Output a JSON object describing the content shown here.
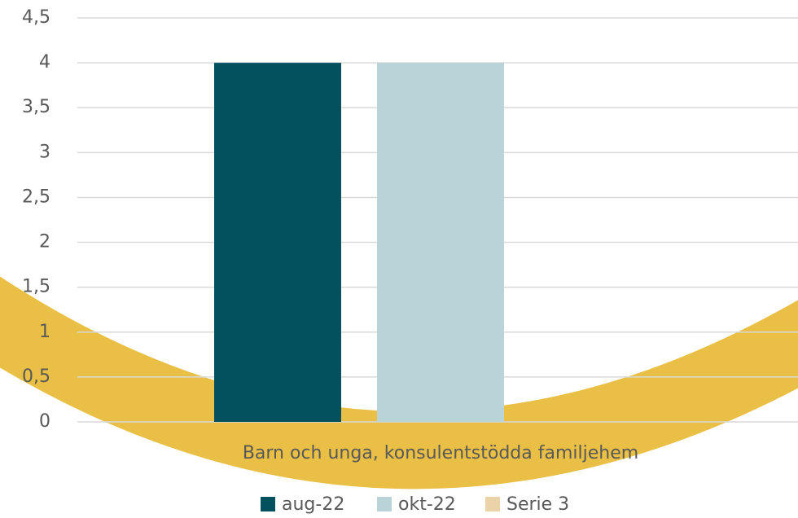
{
  "chart_data": {
    "type": "bar",
    "categories": [
      "Barn och unga, konsulentstödda familjehem"
    ],
    "series": [
      {
        "name": "aug-22",
        "color": "#03515f",
        "values": [
          4
        ]
      },
      {
        "name": "okt-22",
        "color": "#b9d4d8",
        "values": [
          4
        ]
      },
      {
        "name": "Serie 3",
        "color": "#ecd2a8",
        "values": [
          0
        ]
      }
    ],
    "ylim": [
      0,
      4.5
    ],
    "yticks": [
      0,
      {
        "value": 0.5,
        "label": "0,5"
      },
      1,
      {
        "value": 1.5,
        "label": "1,5"
      },
      2,
      {
        "value": 2.5,
        "label": "2,5"
      },
      3,
      {
        "value": 3.5,
        "label": "3,5"
      },
      4,
      {
        "value": 4.5,
        "label": "4,5"
      }
    ],
    "grid": true,
    "legend": "bottom"
  }
}
